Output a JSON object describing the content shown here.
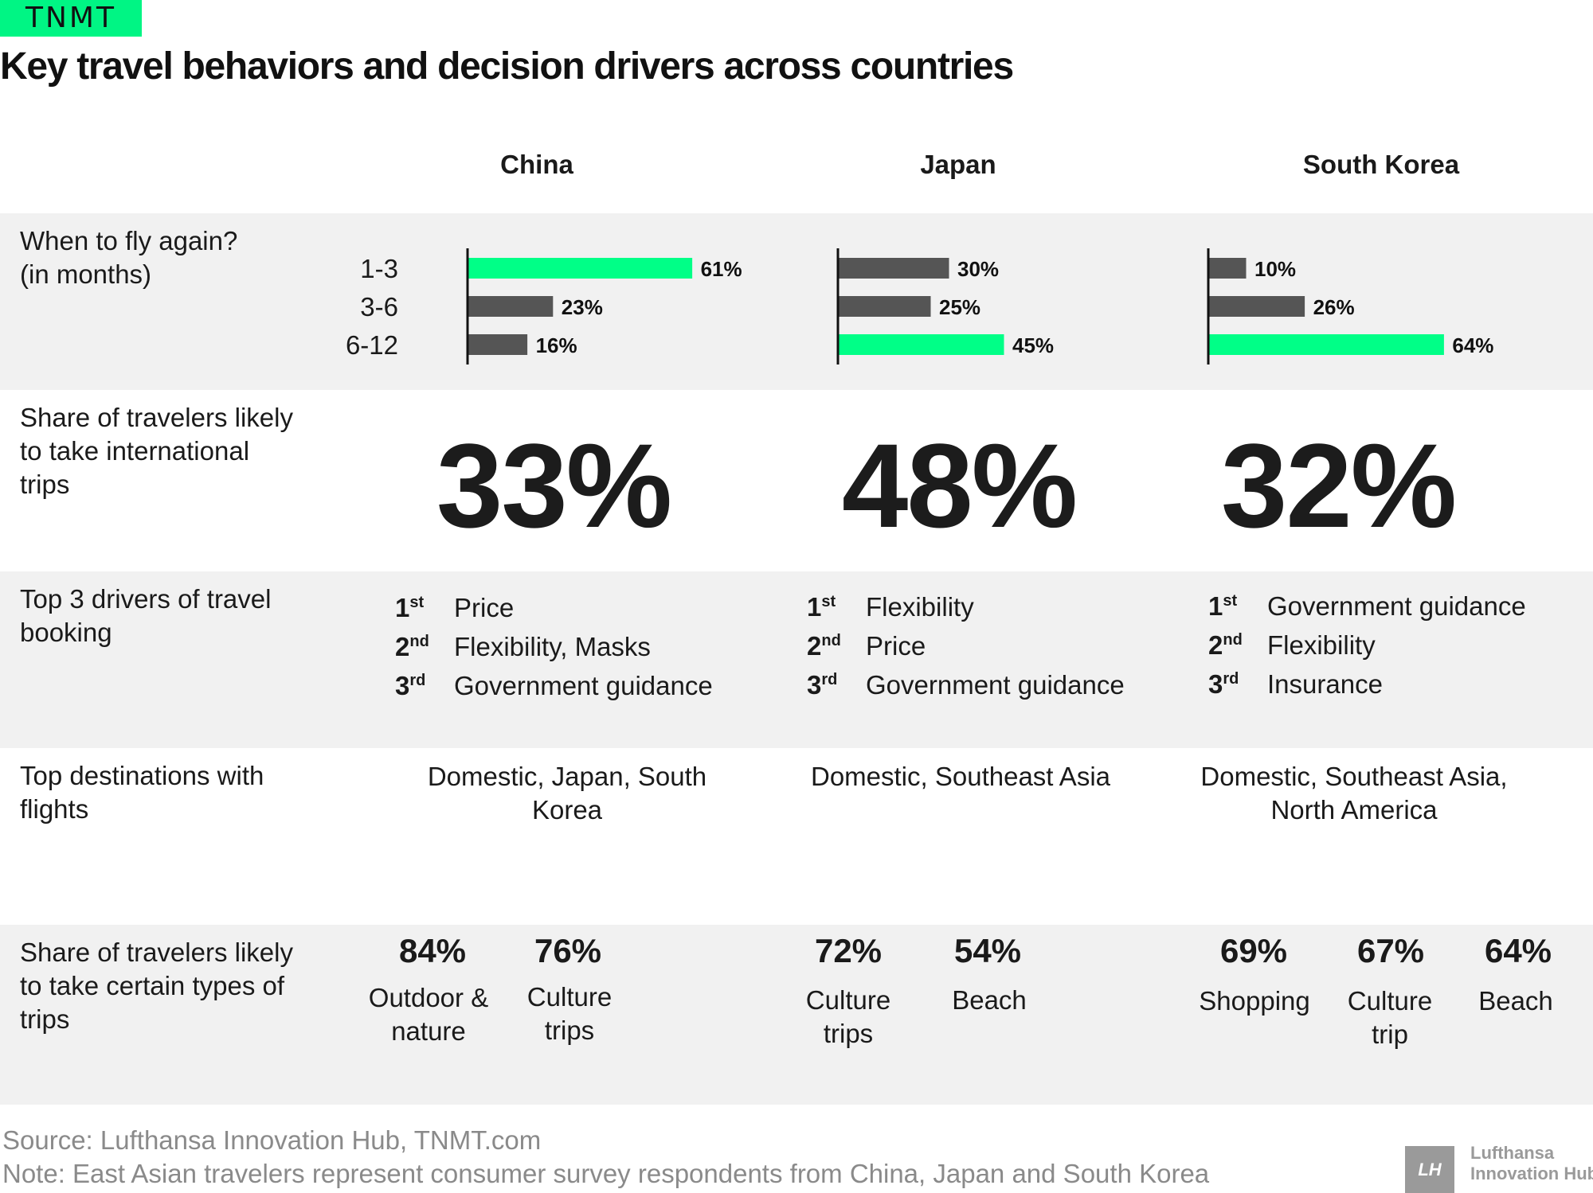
{
  "brand": "TNMT",
  "title": "Key travel behaviors and decision drivers across countries",
  "countries": [
    "China",
    "Japan",
    "South Korea"
  ],
  "rows": {
    "fly_again": [
      "When to fly again?",
      "(in months)"
    ],
    "share_intl": [
      "Share of travelers likely",
      "to take international",
      "trips"
    ],
    "drivers": [
      "Top 3 drivers of travel",
      "booking"
    ],
    "destinations": [
      "Top destinations with",
      "flights"
    ],
    "trip_types": [
      "Share of travelers likely",
      "to take certain types of",
      "trips"
    ]
  },
  "chart_data": [
    {
      "type": "bar",
      "title": "China",
      "categories": [
        "1-3",
        "3-6",
        "6-12"
      ],
      "values": [
        61,
        23,
        16
      ],
      "unit": "%",
      "highlight": "1-3",
      "highlight_color": "#00ff87",
      "bar_color": "#555555"
    },
    {
      "type": "bar",
      "title": "Japan",
      "categories": [
        "1-3",
        "3-6",
        "6-12"
      ],
      "values": [
        30,
        25,
        45
      ],
      "unit": "%",
      "highlight": "6-12",
      "highlight_color": "#00ff87",
      "bar_color": "#555555"
    },
    {
      "type": "bar",
      "title": "South Korea",
      "categories": [
        "1-3",
        "3-6",
        "6-12"
      ],
      "values": [
        10,
        26,
        64
      ],
      "unit": "%",
      "highlight": "6-12",
      "highlight_color": "#00ff87",
      "bar_color": "#555555"
    }
  ],
  "intl_share": [
    "33%",
    "48%",
    "32%"
  ],
  "drivers": [
    [
      {
        "ord": "1",
        "suf": "st",
        "text": "Price"
      },
      {
        "ord": "2",
        "suf": "nd",
        "text": "Flexibility, Masks"
      },
      {
        "ord": "3",
        "suf": "rd",
        "text": "Government guidance"
      }
    ],
    [
      {
        "ord": "1",
        "suf": "st",
        "text": "Flexibility"
      },
      {
        "ord": "2",
        "suf": "nd",
        "text": "Price"
      },
      {
        "ord": "3",
        "suf": "rd",
        "text": "Government guidance"
      }
    ],
    [
      {
        "ord": "1",
        "suf": "st",
        "text": "Government guidance"
      },
      {
        "ord": "2",
        "suf": "nd",
        "text": "Flexibility"
      },
      {
        "ord": "3",
        "suf": "rd",
        "text": "Insurance"
      }
    ]
  ],
  "destinations": [
    [
      "Domestic, Japan, South",
      "Korea"
    ],
    [
      "Domestic, Southeast Asia"
    ],
    [
      "Domestic, Southeast Asia,",
      "North America"
    ]
  ],
  "trip_types": [
    [
      {
        "pct": "84%",
        "label": [
          "Outdoor &",
          "nature"
        ]
      },
      {
        "pct": "76%",
        "label": [
          "Culture",
          "trips"
        ]
      }
    ],
    [
      {
        "pct": "72%",
        "label": [
          "Culture",
          "trips"
        ]
      },
      {
        "pct": "54%",
        "label": [
          "Beach"
        ]
      }
    ],
    [
      {
        "pct": "69%",
        "label": [
          "Shopping"
        ]
      },
      {
        "pct": "67%",
        "label": [
          "Culture",
          "trip"
        ]
      },
      {
        "pct": "64%",
        "label": [
          "Beach"
        ]
      }
    ]
  ],
  "source": "Source: Lufthansa Innovation Hub, TNMT.com",
  "note": "Note: East Asian travelers represent consumer survey respondents from China, Japan and South Korea",
  "footer_logo": {
    "mark": "LH",
    "line1": "Lufthansa",
    "line2": "Innovation Hub"
  }
}
